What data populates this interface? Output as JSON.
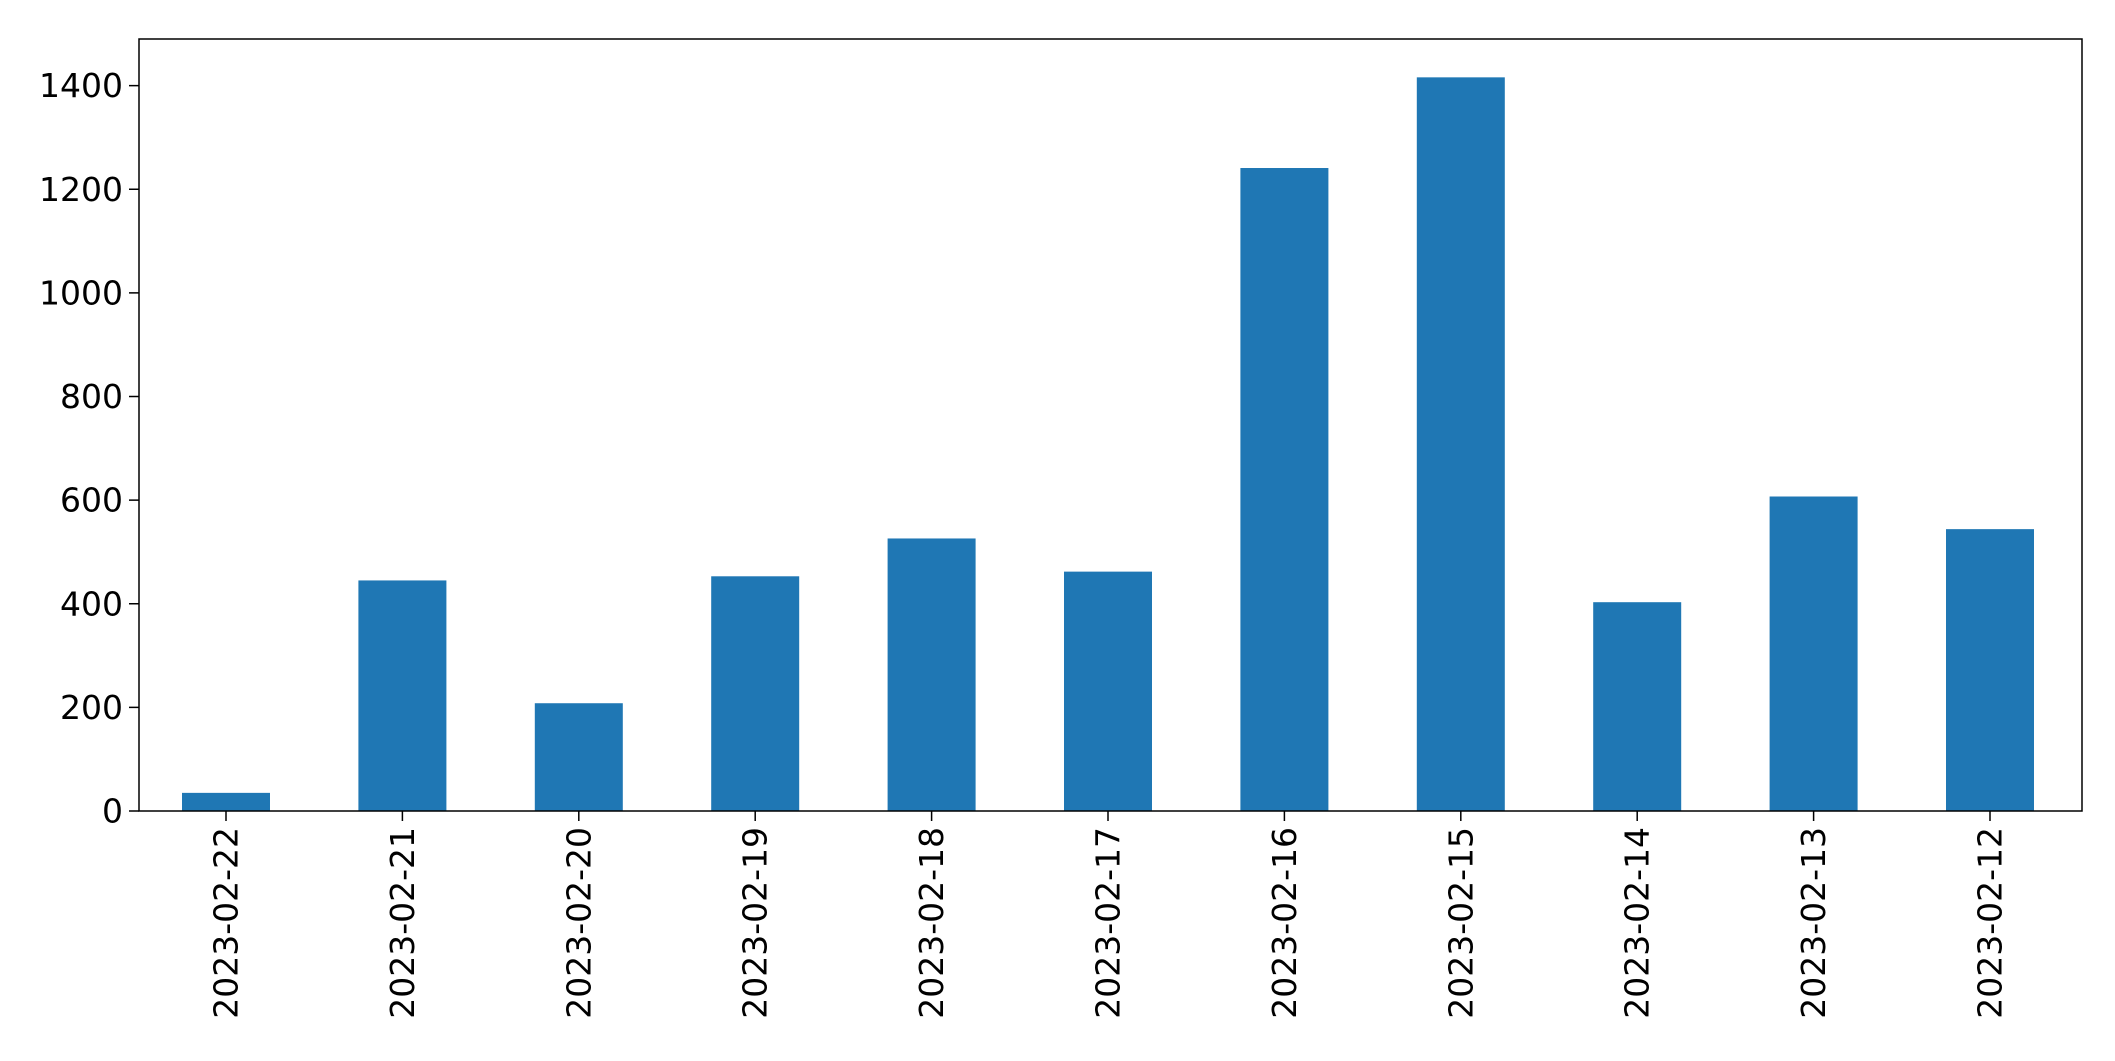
{
  "chart_data": {
    "type": "bar",
    "title": "",
    "xlabel": "",
    "ylabel": "",
    "categories": [
      "2023-02-22",
      "2023-02-21",
      "2023-02-20",
      "2023-02-19",
      "2023-02-18",
      "2023-02-17",
      "2023-02-16",
      "2023-02-15",
      "2023-02-14",
      "2023-02-13",
      "2023-02-12"
    ],
    "values": [
      35,
      445,
      208,
      453,
      526,
      462,
      1241,
      1416,
      403,
      607,
      544
    ],
    "ylim": [
      0,
      1490
    ],
    "yticks": [
      0,
      200,
      400,
      600,
      800,
      1000,
      1200,
      1400
    ],
    "ytick_labels": [
      "0",
      "200",
      "400",
      "600",
      "800",
      "1000",
      "1200",
      "1400"
    ],
    "grid": false,
    "legend": "none",
    "bar_color": "#1f77b4"
  }
}
